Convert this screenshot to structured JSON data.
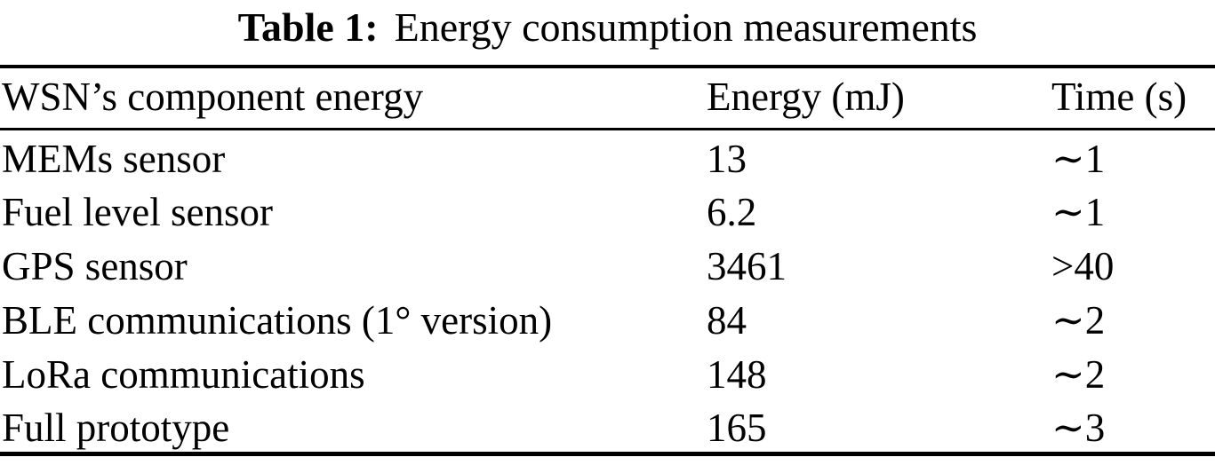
{
  "page": {
    "background_color": "#ffffff",
    "text_color": "#000000"
  },
  "caption": {
    "label": "Table 1:",
    "title": "Energy consumption measurements"
  },
  "table": {
    "columns": [
      "WSN’s component energy",
      "Energy (mJ)",
      "Time (s)"
    ],
    "rows": [
      {
        "component": "MEMs sensor",
        "energy": "13",
        "time": "∼1"
      },
      {
        "component": "Fuel level sensor",
        "energy": "6.2",
        "time": "∼1"
      },
      {
        "component": "GPS sensor",
        "energy": "3461",
        "time": ">40"
      },
      {
        "component": "BLE communications (1° version)",
        "energy": "84",
        "time": "∼2"
      },
      {
        "component": "LoRa communications",
        "energy": "148",
        "time": "∼2"
      },
      {
        "component": "Full prototype",
        "energy": "165",
        "time": "∼3"
      }
    ]
  }
}
